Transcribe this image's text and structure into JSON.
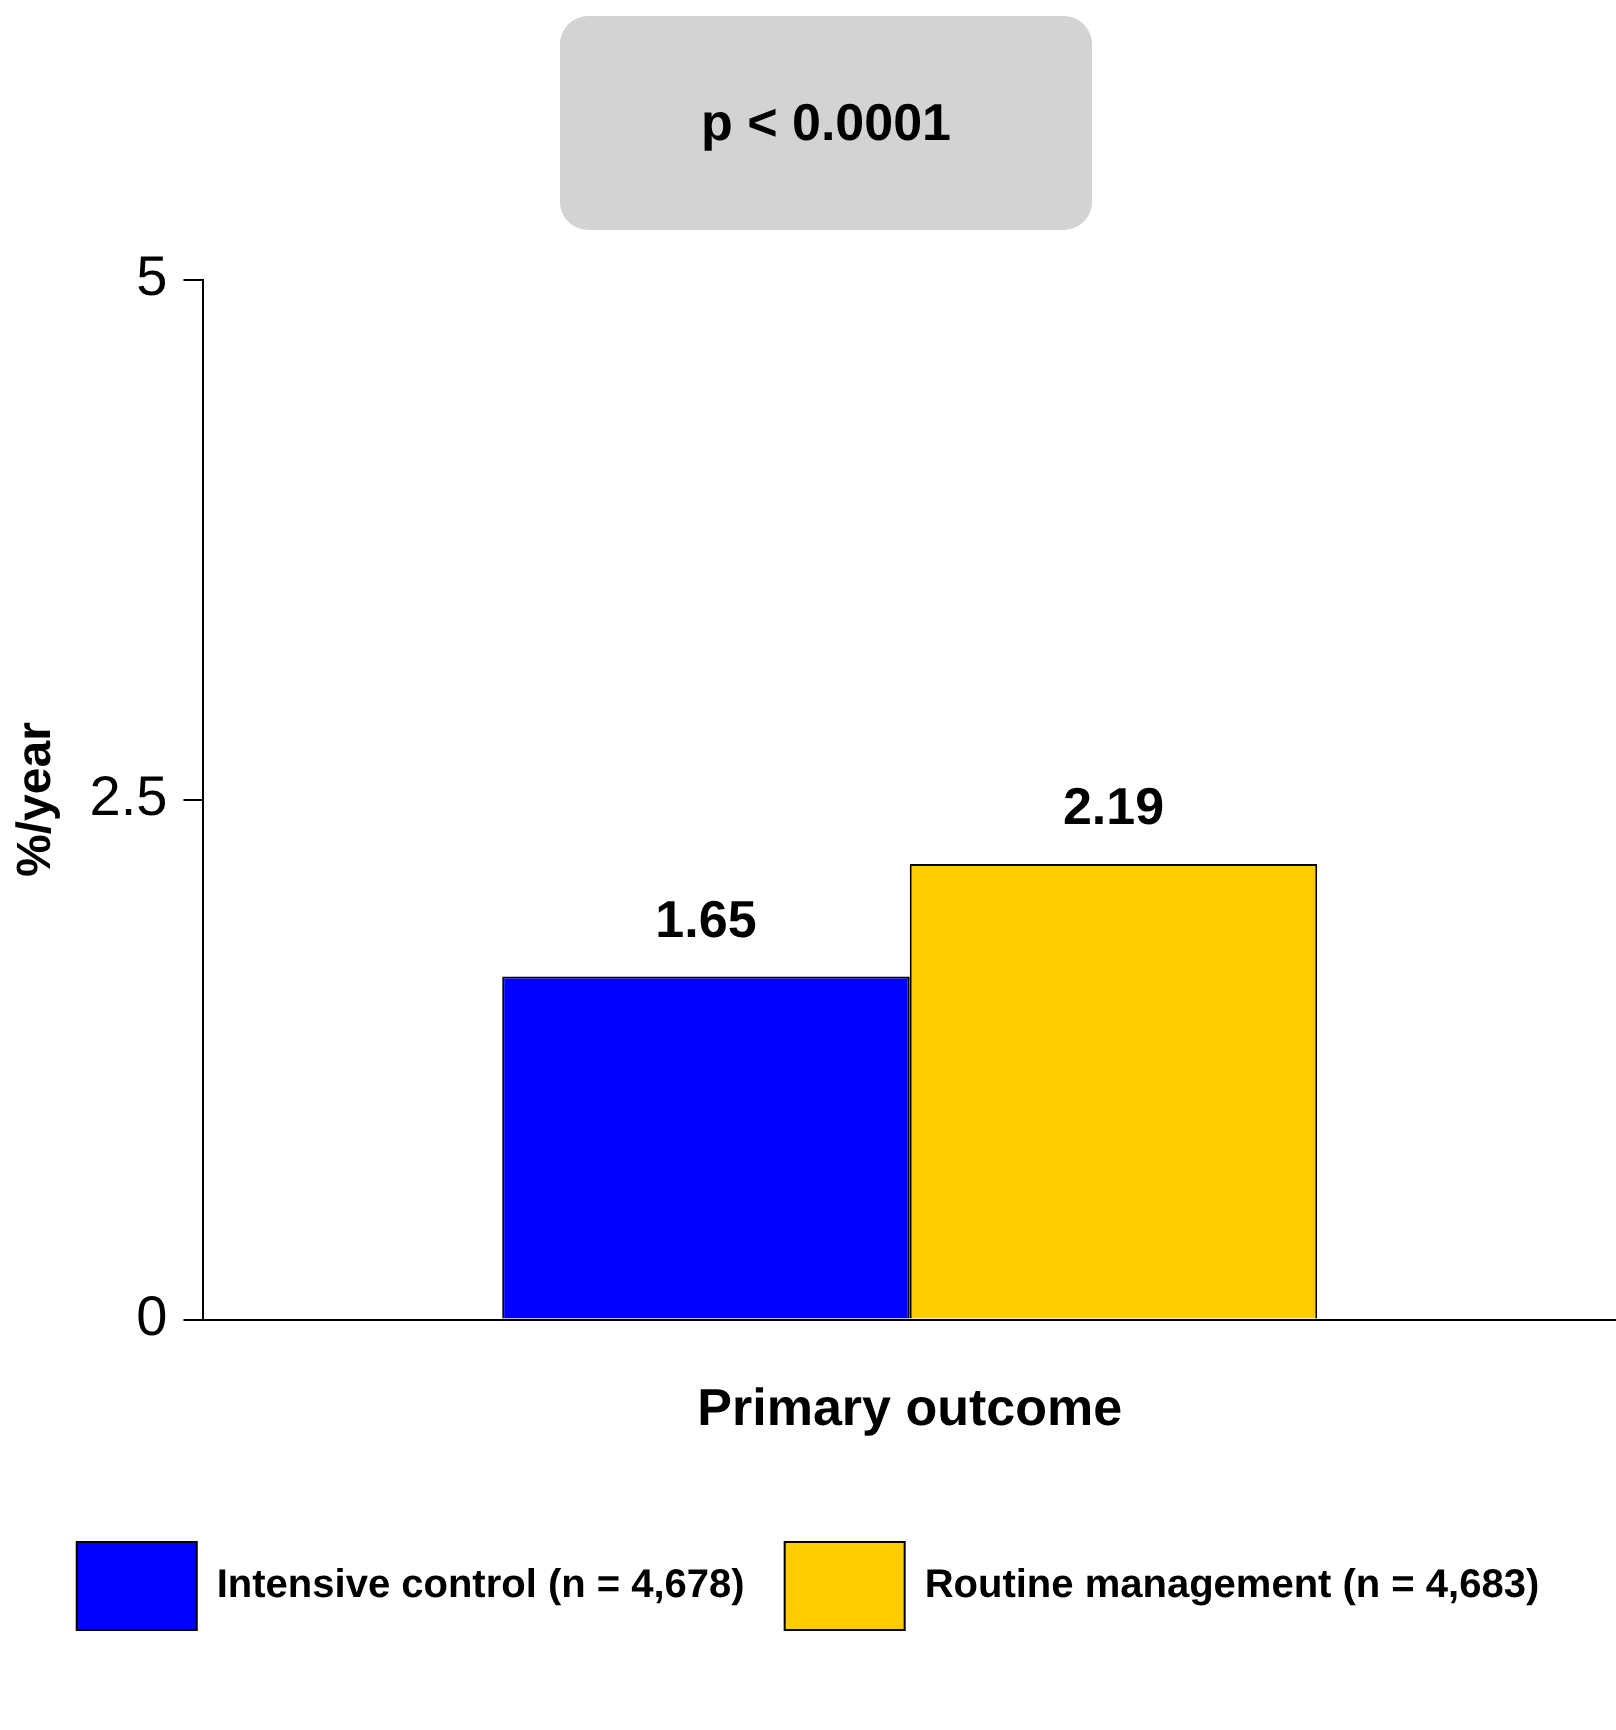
{
  "chart_data": {
    "type": "bar",
    "categories": [
      "Primary outcome"
    ],
    "ylabel": "%/year",
    "ylim": [
      0,
      5
    ],
    "yticks": [
      0,
      2.5,
      5
    ],
    "grid": false,
    "legend": "bottom",
    "data_labels": true,
    "annotations": [
      "p < 0.0001"
    ],
    "series": [
      {
        "name": "Intensive control (n = 4,678)",
        "color": "#0000ff",
        "values": [
          1.65
        ]
      },
      {
        "name": "Routine management (n = 4,683)",
        "color": "#ffcc00",
        "values": [
          2.19
        ]
      }
    ]
  }
}
